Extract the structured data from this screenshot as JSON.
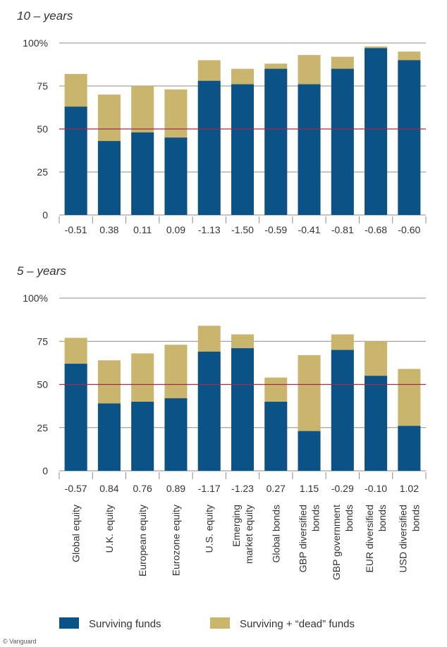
{
  "chart_data": {
    "type": "bar",
    "stacked_overlay": true,
    "y_ticks": [
      "100%",
      "75",
      "50",
      "25",
      "0"
    ],
    "ylim": [
      0,
      100
    ],
    "reference_line": 50,
    "categories": [
      "Global equity",
      "U.K. equity",
      "European equity",
      "Eurozone equity",
      "U.S. equity",
      "Emerging market equity",
      "Global bonds",
      "GBP diversified bonds",
      "GBP government bonds",
      "EUR diversified bonds",
      "USD diversified bonds"
    ],
    "category_lines": [
      [
        "Global equity"
      ],
      [
        "U.K. equity"
      ],
      [
        "European equity"
      ],
      [
        "Eurozone equity"
      ],
      [
        "U.S. equity"
      ],
      [
        "Emerging",
        "market equity"
      ],
      [
        "Global bonds"
      ],
      [
        "GBP diversified",
        "bonds"
      ],
      [
        "GBP government",
        "bonds"
      ],
      [
        "EUR diversified",
        "bonds"
      ],
      [
        "USD diversified",
        "bonds"
      ]
    ],
    "panels": [
      {
        "title": "10 – years",
        "x_labels": [
          "-0.51",
          "0.38",
          "0.11",
          "0.09",
          "-1.13",
          "-1.50",
          "-0.59",
          "-0.41",
          "-0.81",
          "-0.68",
          "-0.60"
        ],
        "series": [
          {
            "name": "Surviving funds",
            "values": [
              63,
              43,
              48,
              45,
              78,
              76,
              85,
              76,
              85,
              97,
              90
            ]
          },
          {
            "name": "Surviving + “dead” funds",
            "values": [
              82,
              70,
              75,
              73,
              90,
              85,
              88,
              93,
              92,
              98,
              95
            ]
          }
        ]
      },
      {
        "title": "5 – years",
        "x_labels": [
          "-0.57",
          "0.84",
          "0.76",
          "0.89",
          "-1.17",
          "-1.23",
          "0.27",
          "1.15",
          "-0.29",
          "-0.10",
          "1.02"
        ],
        "series": [
          {
            "name": "Surviving funds",
            "values": [
              62,
              39,
              40,
              42,
              69,
              71,
              40,
              23,
              70,
              55,
              26
            ]
          },
          {
            "name": "Surviving + “dead” funds",
            "values": [
              77,
              64,
              68,
              73,
              84,
              79,
              54,
              67,
              79,
              75,
              59
            ]
          }
        ]
      }
    ],
    "legend": [
      {
        "label": "Surviving funds",
        "color": "#0b5287"
      },
      {
        "label": "Surviving + “dead” funds",
        "color": "#c9b56e"
      }
    ],
    "colors": {
      "surviving": "#0b5287",
      "dead": "#c9b56e",
      "reference": "#a32a4a",
      "grid": "#8c8c8c"
    },
    "watermark": "© Vanguard"
  }
}
